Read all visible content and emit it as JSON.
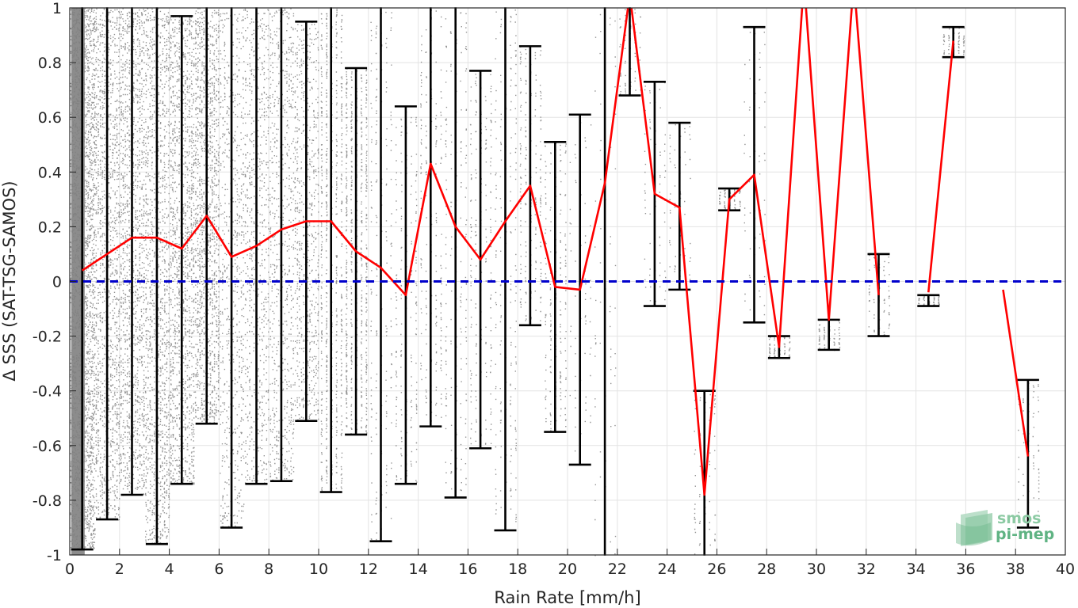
{
  "chart_data": {
    "type": "scatter",
    "xlabel": "Rain Rate [mm/h]",
    "ylabel": "Δ SSS (SAT-TSG-SAMOS)",
    "xlim": [
      0,
      40
    ],
    "ylim": [
      -1,
      1
    ],
    "xticks": [
      0,
      2,
      4,
      6,
      8,
      10,
      12,
      14,
      16,
      18,
      20,
      22,
      24,
      26,
      28,
      30,
      32,
      34,
      36,
      38,
      40
    ],
    "yticks": [
      -1,
      -0.8,
      -0.6,
      -0.4,
      -0.2,
      0,
      0.2,
      0.4,
      0.6,
      0.8,
      1
    ],
    "ytick_labels": [
      "-1",
      "-0.8",
      "-0.6",
      "-0.4",
      "-0.2",
      "0",
      "0.2",
      "0.4",
      "0.6",
      "0.8",
      "1"
    ],
    "grid": true,
    "series": [
      {
        "style": "red-line",
        "color": "#ff0000",
        "x": [
          0.5,
          1.5,
          2.5,
          3.5,
          4.5,
          5.5,
          6.5,
          7.5,
          8.5,
          9.5,
          10.5,
          11.5,
          12.5,
          13.5,
          14.5,
          15.5,
          16.5,
          17.5,
          18.5,
          19.5,
          20.5,
          21.5,
          22.5,
          23.5,
          24.5,
          25.5,
          26.5,
          27.5,
          28.5,
          29.5,
          30.5,
          31.5,
          32.5
        ],
        "y": [
          0.04,
          0.1,
          0.16,
          0.16,
          0.12,
          0.24,
          0.09,
          0.13,
          0.19,
          0.22,
          0.22,
          0.11,
          0.05,
          -0.05,
          0.43,
          0.2,
          0.08,
          0.22,
          0.35,
          -0.02,
          -0.03,
          0.36,
          1.05,
          0.32,
          0.27,
          -0.78,
          0.3,
          0.39,
          -0.24,
          1.1,
          -0.14,
          1.1,
          -0.05
        ]
      },
      {
        "style": "red-line",
        "color": "#ff0000",
        "x": [
          34.5,
          35.5
        ],
        "y": [
          -0.04,
          0.88
        ]
      },
      {
        "style": "red-line",
        "color": "#ff0000",
        "x": [
          37.5,
          38.5
        ],
        "y": [
          -0.03,
          -0.64
        ]
      },
      {
        "style": "dashed-zero",
        "color": "#0000cc",
        "x": [
          0,
          40
        ],
        "y": [
          0,
          0
        ]
      }
    ],
    "error_bars": {
      "color": "#000000",
      "x": [
        0.5,
        1.5,
        2.5,
        3.5,
        4.5,
        5.5,
        6.5,
        7.5,
        8.5,
        9.5,
        10.5,
        11.5,
        12.5,
        13.5,
        14.5,
        15.5,
        16.5,
        17.5,
        18.5,
        19.5,
        20.5,
        21.5,
        22.5,
        23.5,
        24.5,
        25.5,
        26.5,
        27.5,
        28.5,
        30.5,
        32.5,
        34.5,
        35.5,
        38.5
      ],
      "lower": [
        -0.98,
        -0.87,
        -0.78,
        -0.96,
        -0.74,
        -0.52,
        -0.9,
        -0.74,
        -0.73,
        -0.51,
        -0.77,
        -0.56,
        -0.95,
        -0.74,
        -0.53,
        -0.79,
        -0.61,
        -0.91,
        -0.16,
        -0.55,
        -0.67,
        -1.2,
        0.68,
        -0.09,
        -0.03,
        -1.2,
        0.26,
        -0.15,
        -0.28,
        -0.25,
        -0.2,
        -0.09,
        0.82,
        -0.9
      ],
      "upper": [
        1.2,
        1.2,
        1.2,
        1.2,
        0.97,
        1.2,
        1.2,
        1.2,
        1.2,
        0.95,
        1.2,
        0.78,
        1.2,
        0.64,
        1.2,
        1.2,
        0.77,
        1.2,
        0.86,
        0.51,
        0.61,
        1.2,
        1.2,
        0.73,
        0.58,
        -0.4,
        0.34,
        0.93,
        -0.2,
        -0.14,
        0.1,
        -0.05,
        0.93,
        -0.36
      ]
    },
    "scatter": {
      "color": "#808080"
    }
  },
  "logo": {
    "line1": "smos",
    "line2": "pi-mep"
  }
}
